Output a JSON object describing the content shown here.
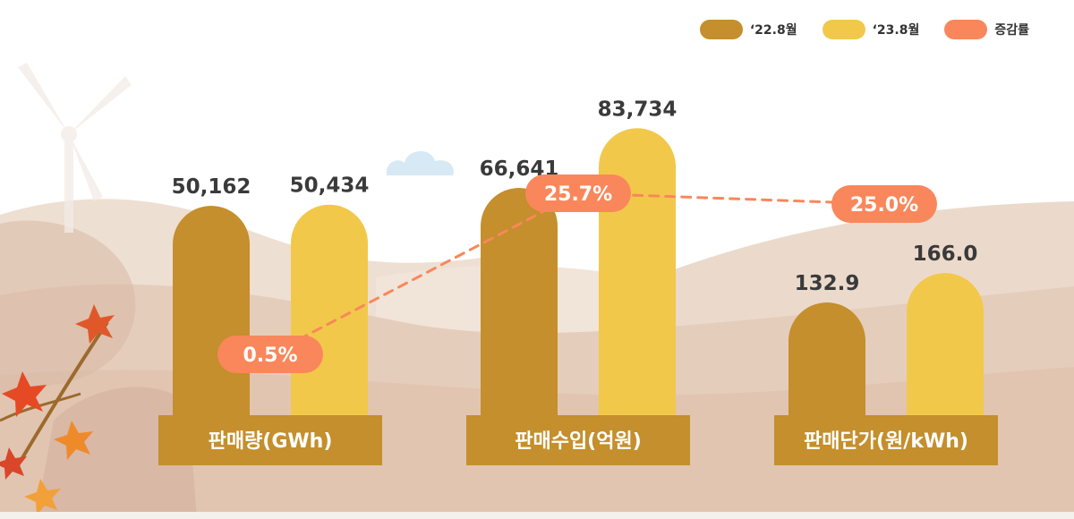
{
  "colors": {
    "series_2022": "#C48F2C",
    "series_2023": "#F2C84B",
    "rate": "#F9875B",
    "category_box": "#C48F2C",
    "label_text": "#3A3A3A",
    "hill_light": "#EEDFD3",
    "hill_mid": "#E5CDBC",
    "hill_dark": "#D9B8A4"
  },
  "legend": {
    "items": [
      {
        "label": "‘22.8월",
        "color": "#C48F2C"
      },
      {
        "label": "‘23.8월",
        "color": "#F2C84B"
      },
      {
        "label": "증감률",
        "color": "#F9875B"
      }
    ]
  },
  "decor": {
    "icons": [
      "wind-turbine-icon",
      "cloud-icon",
      "maple-leaf-icon"
    ]
  },
  "chart_data": {
    "type": "bar",
    "categories": [
      "판매량(GWh)",
      "판매수입(억원)",
      "판매단가(원/kWh)"
    ],
    "series": [
      {
        "name": "‘22.8월",
        "values": [
          50162,
          66641,
          132.9
        ],
        "labels": [
          "50,162",
          "66,641",
          "132.9"
        ]
      },
      {
        "name": "‘23.8월",
        "values": [
          50434,
          83734,
          166.0
        ],
        "labels": [
          "50,434",
          "83,734",
          "166.0"
        ]
      }
    ],
    "change_rate": {
      "name": "증감률",
      "values": [
        0.5,
        25.7,
        25.0
      ],
      "labels": [
        "0.5%",
        "25.7%",
        "25.0%"
      ]
    },
    "legend_position": "top-right",
    "grid": false,
    "scale_note": "each category group is drawn on its own independent value scale"
  }
}
